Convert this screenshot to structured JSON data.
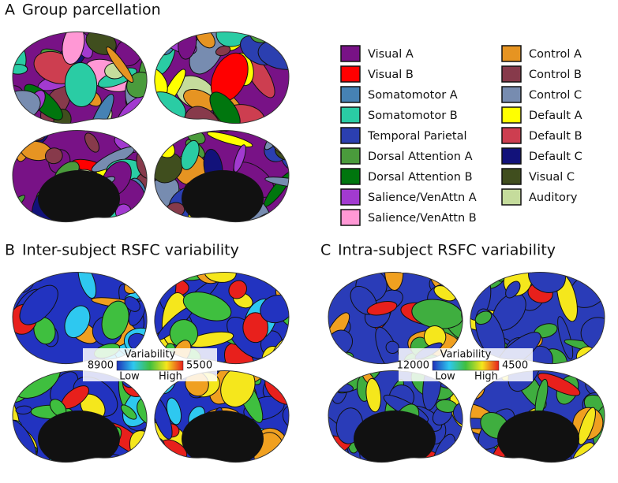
{
  "panels": [
    {
      "label": "A",
      "title": "Group parcellation"
    },
    {
      "label": "B",
      "title": "Inter-subject RSFC variability",
      "colorbar": {
        "title": "Variability",
        "left": 8900,
        "right": 5500,
        "low": "Low",
        "high": "High"
      }
    },
    {
      "label": "C",
      "title": "Intra-subject RSFC variability",
      "colorbar": {
        "title": "Variability",
        "left": 12000,
        "right": 4500,
        "low": "Low",
        "high": "High"
      }
    }
  ],
  "legend": [
    {
      "label": "Visual A",
      "color": "#781286"
    },
    {
      "label": "Visual B",
      "color": "#ff0000"
    },
    {
      "label": "Somatomotor A",
      "color": "#4682b4"
    },
    {
      "label": "Somatomotor B",
      "color": "#2acca4"
    },
    {
      "label": "Temporal Parietal",
      "color": "#2b3fb0"
    },
    {
      "label": "Dorsal Attention A",
      "color": "#4a9b3c"
    },
    {
      "label": "Dorsal Attention B",
      "color": "#00760e"
    },
    {
      "label": "Salience/VenAttn A",
      "color": "#a23ad0"
    },
    {
      "label": "Salience/VenAttn B",
      "color": "#ff98d5"
    },
    {
      "label": "Control A",
      "color": "#e69422"
    },
    {
      "label": "Control B",
      "color": "#873a4b"
    },
    {
      "label": "Control C",
      "color": "#778cb0"
    },
    {
      "label": "Default A",
      "color": "#ffff00"
    },
    {
      "label": "Default B",
      "color": "#cd3e50"
    },
    {
      "label": "Default C",
      "color": "#12127a"
    },
    {
      "label": "Visual C",
      "color": "#404e1e"
    },
    {
      "label": "Auditory",
      "color": "#c5dc9c"
    }
  ]
}
